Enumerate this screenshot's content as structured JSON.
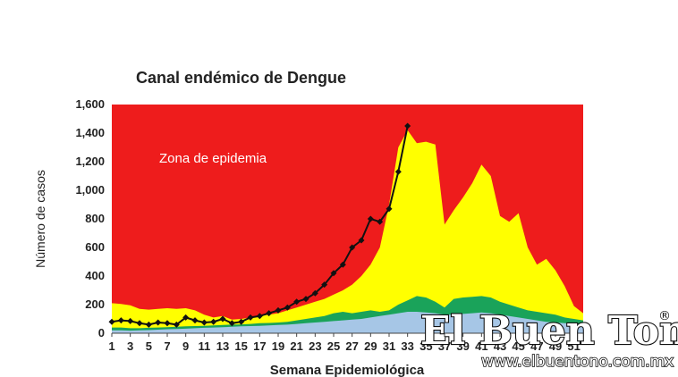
{
  "chart_data": {
    "type": "area",
    "title": "Canal endémico de Dengue",
    "xlabel": "Semana Epidemiológica",
    "ylabel": "Número de casos",
    "ylim": [
      0,
      1600
    ],
    "xlim": [
      1,
      52
    ],
    "yticks": [
      0,
      200,
      400,
      600,
      800,
      1000,
      1200,
      1400,
      1600
    ],
    "ytick_labels": [
      "0",
      "200",
      "400",
      "600",
      "800",
      "1,000",
      "1,200",
      "1,400",
      "1,600"
    ],
    "xticks": [
      1,
      3,
      5,
      7,
      9,
      11,
      13,
      15,
      17,
      19,
      21,
      23,
      25,
      27,
      29,
      31,
      33,
      35,
      37,
      39,
      41,
      43,
      45,
      47,
      49,
      51
    ],
    "annotation": "Zona de epidemia",
    "colors": {
      "epidemia": "#ee1c1c",
      "alarma": "#ffff00",
      "seguridad": "#1aa35a",
      "exito": "#a6c6e6",
      "casos": "#111111"
    },
    "weeks": [
      1,
      2,
      3,
      4,
      5,
      6,
      7,
      8,
      9,
      10,
      11,
      12,
      13,
      14,
      15,
      16,
      17,
      18,
      19,
      20,
      21,
      22,
      23,
      24,
      25,
      26,
      27,
      28,
      29,
      30,
      31,
      32,
      33,
      34,
      35,
      36,
      37,
      38,
      39,
      40,
      41,
      42,
      43,
      44,
      45,
      46,
      47,
      48,
      49,
      50,
      51,
      52
    ],
    "series": [
      {
        "values": [
          20,
          20,
          18,
          20,
          22,
          25,
          28,
          30,
          32,
          35,
          38,
          40,
          42,
          45,
          48,
          50,
          52,
          55,
          58,
          60,
          65,
          70,
          75,
          80,
          85,
          90,
          95,
          100,
          110,
          120,
          130,
          140,
          150,
          150,
          145,
          140,
          130,
          130,
          135,
          140,
          145,
          140,
          130,
          120,
          110,
          100,
          90,
          80,
          75,
          70,
          65,
          60
        ]
      },
      {
        "values": [
          40,
          40,
          35,
          35,
          38,
          40,
          42,
          45,
          48,
          50,
          52,
          55,
          58,
          60,
          62,
          65,
          70,
          72,
          75,
          80,
          90,
          100,
          110,
          120,
          140,
          150,
          140,
          150,
          160,
          150,
          160,
          200,
          230,
          260,
          250,
          220,
          180,
          240,
          250,
          255,
          260,
          250,
          220,
          200,
          180,
          160,
          150,
          140,
          130,
          110,
          100,
          90
        ]
      },
      {
        "values": [
          210,
          205,
          195,
          170,
          165,
          170,
          175,
          170,
          175,
          160,
          130,
          110,
          120,
          95,
          100,
          110,
          120,
          130,
          140,
          160,
          180,
          200,
          220,
          240,
          270,
          300,
          340,
          400,
          480,
          600,
          900,
          1300,
          1420,
          1330,
          1340,
          1320,
          760,
          860,
          950,
          1050,
          1180,
          1100,
          820,
          780,
          840,
          600,
          480,
          520,
          440,
          330,
          190,
          140
        ]
      },
      {
        "values": [
          80,
          90,
          85,
          70,
          60,
          75,
          70,
          60,
          110,
          90,
          75,
          80,
          100,
          70,
          80,
          110,
          120,
          140,
          160,
          180,
          220,
          240,
          280,
          340,
          420,
          480,
          600,
          650,
          800,
          780,
          870,
          1130,
          1450
        ]
      }
    ]
  },
  "watermark": {
    "brand": "El Buen Tono",
    "registered": "®",
    "url": "www.elbuentono.com.mx"
  }
}
